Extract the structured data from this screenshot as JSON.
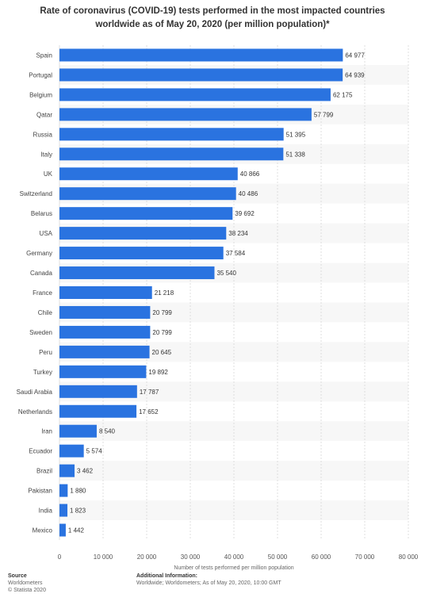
{
  "chart_data": {
    "type": "bar",
    "orientation": "horizontal",
    "title_lines": [
      "Rate of coronavirus (COVID-19) tests performed in the most impacted countries",
      "worldwide as of May 20, 2020 (per million population)*"
    ],
    "xlabel": "Number of tests performed per million population",
    "ylabel": "",
    "xlim": [
      0,
      80000
    ],
    "xticks": [
      0,
      10000,
      20000,
      30000,
      40000,
      50000,
      60000,
      70000,
      80000
    ],
    "xtick_labels": [
      "0",
      "10 000",
      "20 000",
      "30 000",
      "40 000",
      "50 000",
      "60 000",
      "70 000",
      "80 000"
    ],
    "grid": "vertical dashed",
    "bar_color": "#2a73e0",
    "categories": [
      "Spain",
      "Portugal",
      "Belgium",
      "Qatar",
      "Russia",
      "Italy",
      "UK",
      "Switzerland",
      "Belarus",
      "USA",
      "Germany",
      "Canada",
      "France",
      "Chile",
      "Sweden",
      "Peru",
      "Turkey",
      "Saudi Arabia",
      "Netherlands",
      "Iran",
      "Ecuador",
      "Brazil",
      "Pakistan",
      "India",
      "Mexico"
    ],
    "values": [
      64977,
      64939,
      62175,
      57799,
      51395,
      51338,
      40866,
      40486,
      39692,
      38234,
      37584,
      35540,
      21218,
      20799,
      20799,
      20645,
      19892,
      17787,
      17652,
      8540,
      5574,
      3462,
      1880,
      1823,
      1442
    ],
    "value_labels": [
      "64 977",
      "64 939",
      "62 175",
      "57 799",
      "51 395",
      "51 338",
      "40 866",
      "40 486",
      "39 692",
      "38 234",
      "37 584",
      "35 540",
      "21 218",
      "20 799",
      "20 799",
      "20 645",
      "19 892",
      "17 787",
      "17 652",
      "8 540",
      "5 574",
      "3 462",
      "1 880",
      "1 823",
      "1 442"
    ]
  },
  "footer": {
    "source_heading": "Source",
    "source_lines": [
      "Worldometers",
      "© Statista 2020"
    ],
    "info_heading": "Additional Information:",
    "info_text": "Worldwide; Worldometers; As of May 20, 2020, 10:00 GMT"
  }
}
